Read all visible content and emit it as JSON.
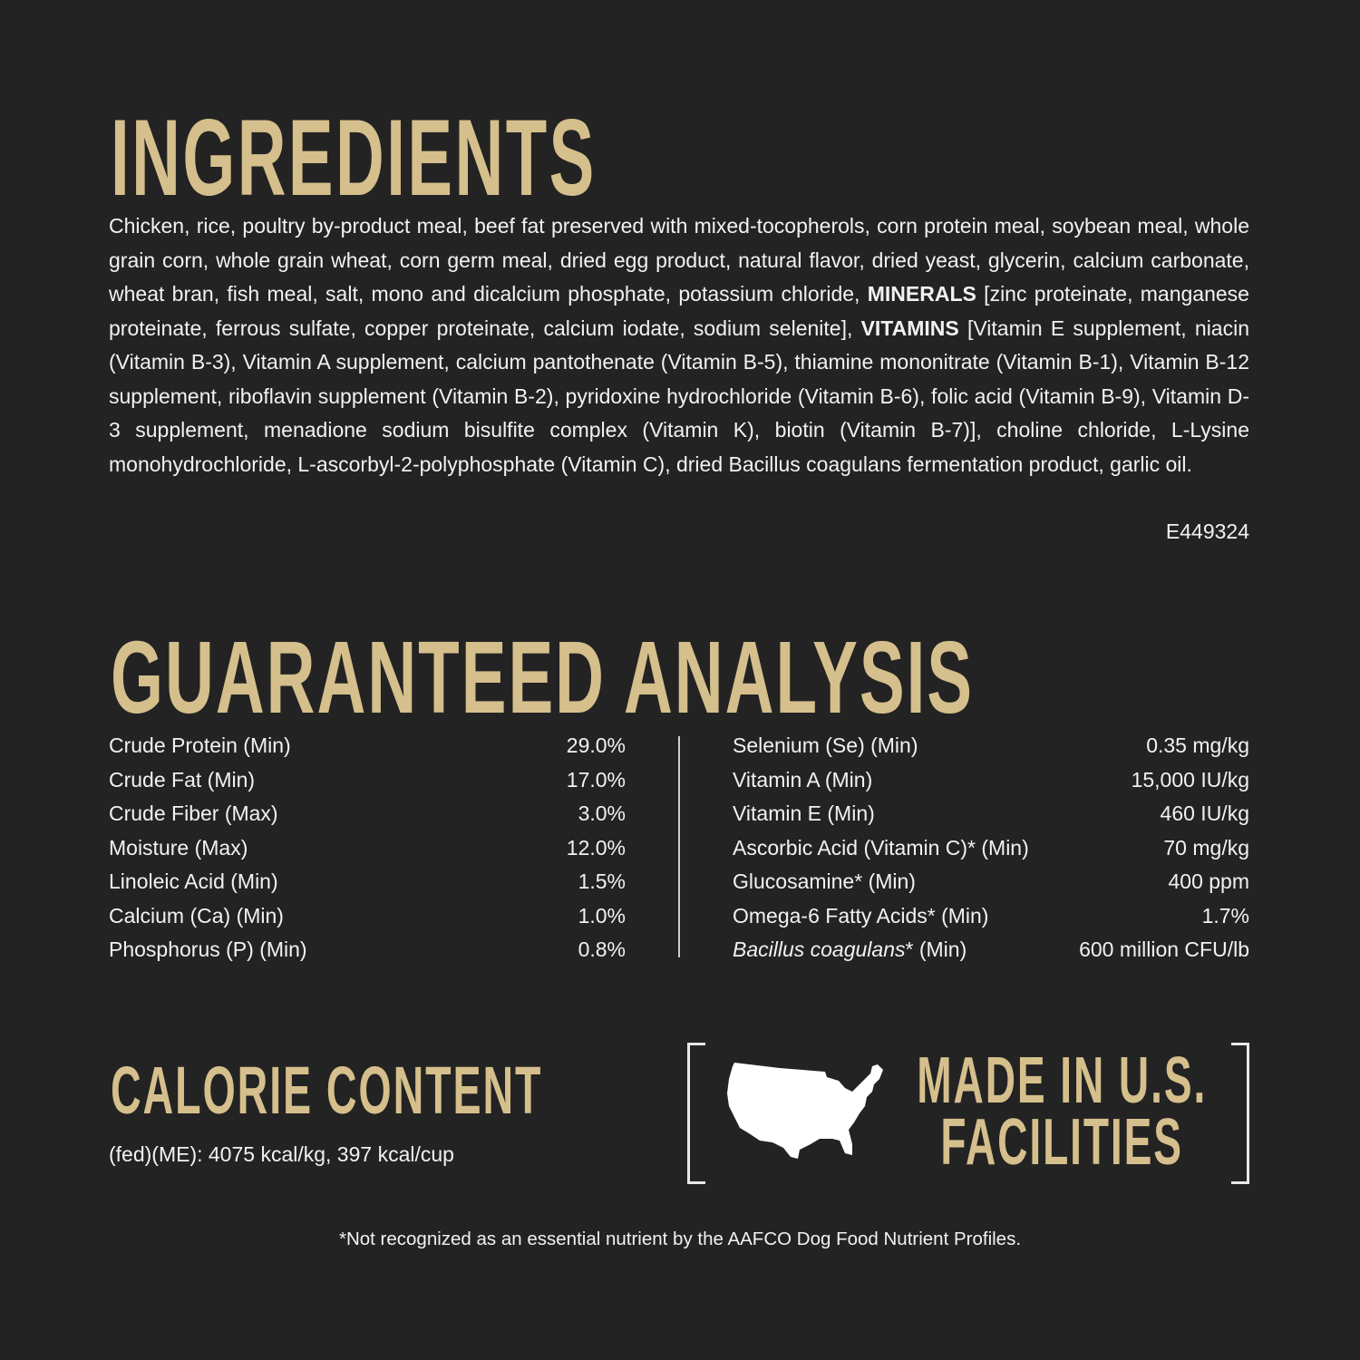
{
  "ingredients": {
    "heading": "INGREDIENTS",
    "text_1": "Chicken, rice, poultry by-product meal, beef fat preserved with mixed-tocopherols, corn protein meal, soybean meal, whole grain corn, whole grain wheat, corn germ meal, dried egg product, natural flavor, dried yeast, glycerin, calcium carbonate, wheat bran, fish meal, salt, mono and dicalcium phosphate, potassium chloride, ",
    "minerals_label": "MINERALS",
    "text_2": " [zinc proteinate, manganese proteinate, ferrous sulfate, copper proteinate, calcium iodate, sodium selenite], ",
    "vitamins_label": "VITAMINS",
    "text_3": " [Vitamin E supplement, niacin (Vitamin B-3), Vitamin A supplement, calcium pantothenate (Vitamin B-5), thiamine mononitrate (Vitamin B-1), Vitamin B-12 supplement, riboflavin supplement (Vitamin B-2), pyridoxine hydrochloride (Vitamin B-6), folic acid (Vitamin B-9), Vitamin D-3 supplement, menadione sodium bisulfite complex (Vitamin K), biotin (Vitamin B-7)], choline chloride, L-Lysine monohydrochloride, L-ascorbyl-2-polyphosphate (Vitamin C), dried Bacillus coagulans fermentation product, garlic oil.",
    "code": "E449324"
  },
  "analysis": {
    "heading": "GUARANTEED ANALYSIS",
    "left": [
      {
        "label": "Crude Protein (Min)",
        "value": "29.0%"
      },
      {
        "label": "Crude Fat (Min)",
        "value": "17.0%"
      },
      {
        "label": "Crude Fiber (Max)",
        "value": "3.0%"
      },
      {
        "label": "Moisture (Max)",
        "value": "12.0%"
      },
      {
        "label": "Linoleic Acid (Min)",
        "value": "1.5%"
      },
      {
        "label": "Calcium (Ca) (Min)",
        "value": "1.0%"
      },
      {
        "label": "Phosphorus (P) (Min)",
        "value": "0.8%"
      }
    ],
    "right": [
      {
        "label": "Selenium (Se) (Min)",
        "value": "0.35 mg/kg"
      },
      {
        "label": "Vitamin A (Min)",
        "value": "15,000 IU/kg"
      },
      {
        "label": "Vitamin E (Min)",
        "value": "460 IU/kg"
      },
      {
        "label": "Ascorbic Acid (Vitamin C)* (Min)",
        "value": "70 mg/kg"
      },
      {
        "label": "Glucosamine* (Min)",
        "value": "400 ppm"
      },
      {
        "label": "Omega-6 Fatty Acids* (Min)",
        "value": "1.7%"
      },
      {
        "label_italic": "Bacillus coagulans",
        "label": "* (Min)",
        "value": "600 million CFU/lb"
      }
    ]
  },
  "calorie": {
    "heading": "CALORIE CONTENT",
    "text": "(fed)(ME): 4075 kcal/kg, 397 kcal/cup"
  },
  "badge": {
    "line1": "MADE IN U.S.",
    "line2": "FACILITIES",
    "icon": "usa-map-icon"
  },
  "footnote": "*Not recognized as an essential nutrient by the AAFCO Dog Food Nutrient Profiles.",
  "colors": {
    "background": "#232323",
    "accent_gold": "#d5bf8c",
    "text": "#f2f2f2"
  }
}
